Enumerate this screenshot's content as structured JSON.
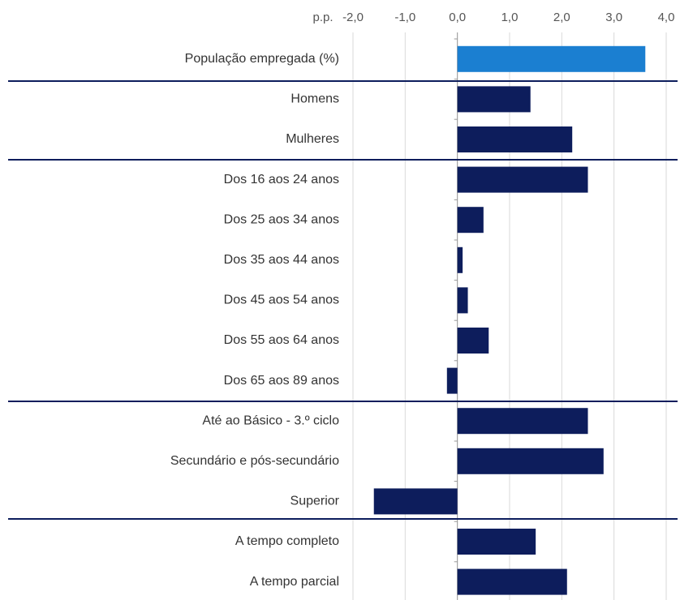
{
  "chart_data": {
    "type": "bar",
    "orientation": "horizontal",
    "x_label": "p.p.",
    "categories": [
      "População empregada (%)",
      "Homens",
      "Mulheres",
      "Dos 16 aos 24 anos",
      "Dos 25 aos 34 anos",
      "Dos 35 aos 44 anos",
      "Dos 45 aos 54 anos",
      "Dos 55 aos 64 anos",
      "Dos 65 aos 89 anos",
      "Até ao Básico - 3.º ciclo",
      "Secundário e pós-secundário",
      "Superior",
      "A tempo completo",
      "A tempo parcial"
    ],
    "values": [
      3.6,
      1.4,
      2.2,
      2.5,
      0.5,
      0.1,
      0.2,
      0.6,
      -0.2,
      2.5,
      2.8,
      -1.6,
      1.5,
      2.1
    ],
    "colors": [
      "#1b7fd1",
      "#0d1d5c",
      "#0d1d5c",
      "#0d1d5c",
      "#0d1d5c",
      "#0d1d5c",
      "#0d1d5c",
      "#0d1d5c",
      "#0d1d5c",
      "#0d1d5c",
      "#0d1d5c",
      "#0d1d5c",
      "#0d1d5c",
      "#0d1d5c"
    ],
    "xlim": [
      -2,
      4
    ],
    "xticks": [
      {
        "value": -2,
        "label": "-2,0"
      },
      {
        "value": -1,
        "label": "-1,0"
      },
      {
        "value": 0,
        "label": "0,0"
      },
      {
        "value": 1,
        "label": "1,0"
      },
      {
        "value": 2,
        "label": "2,0"
      },
      {
        "value": 3,
        "label": "3,0"
      },
      {
        "value": 4,
        "label": "4,0"
      }
    ],
    "grid": true
  }
}
